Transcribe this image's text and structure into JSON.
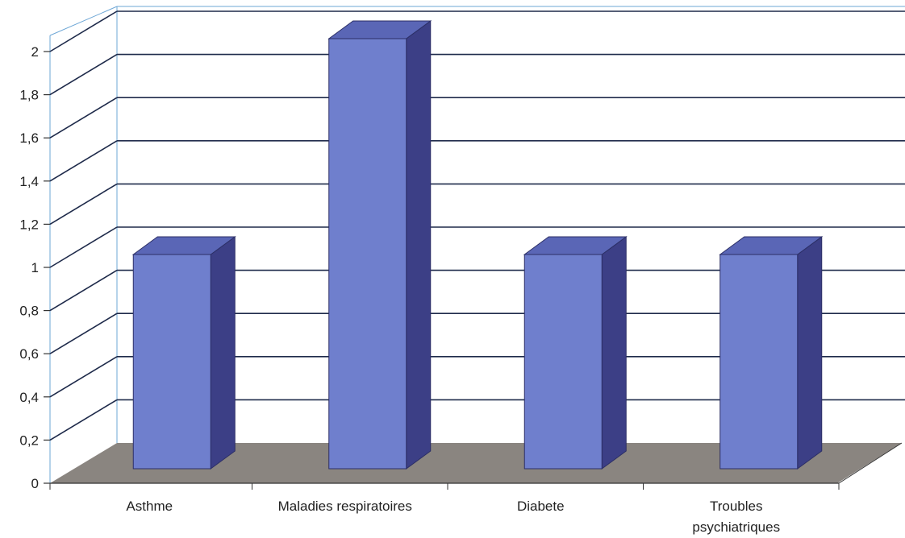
{
  "chart_data": {
    "type": "bar",
    "style": "3d",
    "categories": [
      "Asthme",
      "Maladies respiratoires",
      "Diabete",
      "Troubles psychiatriques"
    ],
    "category_lines": [
      [
        "Asthme"
      ],
      [
        "Maladies respiratoires"
      ],
      [
        "Diabete"
      ],
      [
        "Troubles",
        "psychiatriques"
      ]
    ],
    "values": [
      1,
      2,
      1,
      1
    ],
    "ylim": [
      0,
      2
    ],
    "yticks": [
      "0",
      "0,2",
      "0,4",
      "0,6",
      "0,8",
      "1",
      "1,2",
      "1,4",
      "1,6",
      "1,8",
      "2"
    ],
    "grid": true,
    "legend": "none",
    "title": "",
    "xlabel": "",
    "ylabel": ""
  },
  "colors": {
    "bar_front": "#6f7fcd",
    "bar_top": "#5a66b6",
    "bar_side": "#3c3f86",
    "floor": "#8a8580",
    "grid": "#1e2a4a",
    "wall_line": "#6ea7d6"
  }
}
